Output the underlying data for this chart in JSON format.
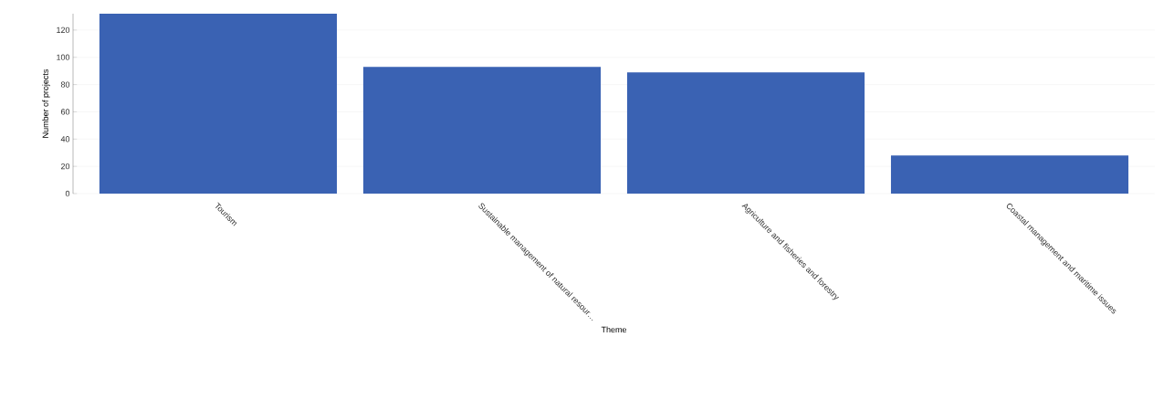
{
  "chart_data": {
    "type": "bar",
    "xlabel": "Theme",
    "ylabel": "Number of projects",
    "categories": [
      "Tourism",
      "Sustainable management of natural resour…",
      "Agriculture and fisheries and forestry",
      "Coastal management and maritime issues"
    ],
    "values": [
      132,
      93,
      89,
      28
    ],
    "color": "#3a62b3",
    "ylim": [
      0,
      132
    ],
    "yticks": [
      0,
      20,
      40,
      60,
      80,
      100,
      120
    ],
    "grid": "y"
  }
}
